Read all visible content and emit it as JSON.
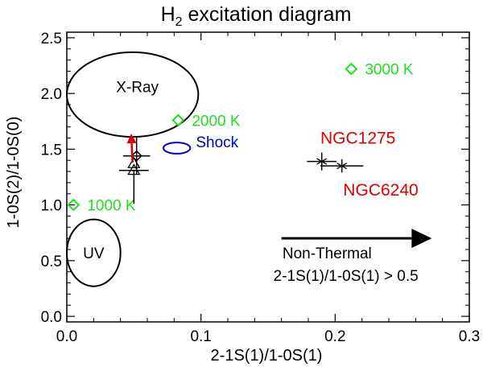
{
  "chart_data": {
    "type": "scatter",
    "title": "H",
    "title_subscript": "2",
    "title_rest": " excitation diagram",
    "xlabel": "2-1S(1)/1-0S(1)",
    "ylabel": "1-0S(2)/1-0S(0)",
    "xlim": [
      0.0,
      0.3
    ],
    "ylim": [
      -0.05,
      2.55
    ],
    "x_ticks": [
      {
        "value": 0.0,
        "label": "0.0"
      },
      {
        "value": 0.1,
        "label": "0.1"
      },
      {
        "value": 0.2,
        "label": "0.2"
      },
      {
        "value": 0.3,
        "label": "0.3"
      }
    ],
    "y_ticks": [
      {
        "value": 0.0,
        "label": "0.0"
      },
      {
        "value": 0.5,
        "label": "0.5"
      },
      {
        "value": 1.0,
        "label": "1.0"
      },
      {
        "value": 1.5,
        "label": "1.5"
      },
      {
        "value": 2.0,
        "label": "2.0"
      },
      {
        "value": 2.5,
        "label": "2.5"
      }
    ],
    "grid": false,
    "thermal_models": [
      {
        "label": "1000 K",
        "x": 0.005,
        "y": 1.0
      },
      {
        "label": "2000 K",
        "x": 0.083,
        "y": 1.76
      },
      {
        "label": "3000 K",
        "x": 0.212,
        "y": 2.22
      }
    ],
    "regions": [
      {
        "label": "X-Ray",
        "cx": 0.049,
        "cy": 1.99,
        "rx": 0.049,
        "ry": 0.38,
        "color": "#000000"
      },
      {
        "label": "UV",
        "cx": 0.02,
        "cy": 0.57,
        "rx": 0.02,
        "ry": 0.3,
        "color": "#000000"
      },
      {
        "label": "Shock",
        "cx": 0.082,
        "cy": 1.51,
        "rx": 0.01,
        "ry": 0.05,
        "color": "#0000cc"
      }
    ],
    "diamond_point": {
      "x": 0.052,
      "y": 1.44,
      "xerr": 0.01,
      "yerr": 0.17
    },
    "triangle_points": [
      {
        "x": 0.05,
        "y": 1.31,
        "xerr": 0.011,
        "yerr_low": 0.3,
        "yerr_high": 0.0
      },
      {
        "x": 0.05,
        "y": 1.37,
        "xerr": 0.0,
        "yerr_low": 0.0,
        "yerr_high": 0.0
      }
    ],
    "red_arrow": {
      "x_from": 0.049,
      "y_from": 1.38,
      "x_to": 0.048,
      "y_to": 1.64
    },
    "galaxies": [
      {
        "label": "NGC1275",
        "x": 0.19,
        "y": 1.39,
        "xerr": 0.011,
        "yerr": 0.08,
        "color": "#dd0000"
      },
      {
        "label": "NGC6240",
        "x": 0.205,
        "y": 1.35,
        "xerr": 0.016,
        "yerr": 0.06,
        "color": "#dd0000"
      }
    ],
    "nonthermal": {
      "label": "Non-Thermal",
      "criterion": "2-1S(1)/1-0S(1) > 0.5",
      "arrow_x_from": 0.16,
      "arrow_x_to": 0.272,
      "arrow_y": 0.7
    },
    "colors": {
      "axis": "#000000",
      "thermal": "#22dd22",
      "shock": "#0000cc",
      "galaxy_label": "#dd0000",
      "arrow": "#dd0000"
    }
  }
}
